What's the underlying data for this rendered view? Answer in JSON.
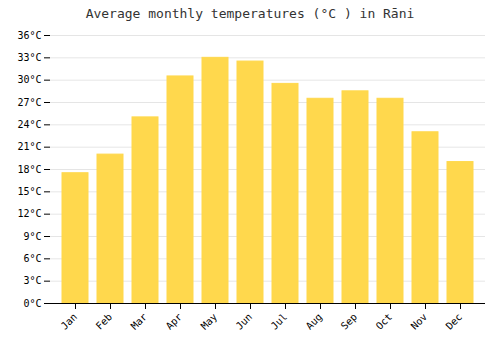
{
  "chart_data": {
    "type": "bar",
    "title": "Average monthly temperatures (°C ) in Rāni",
    "categories": [
      "Jan",
      "Feb",
      "Mar",
      "Apr",
      "May",
      "Jun",
      "Jul",
      "Aug",
      "Sep",
      "Oct",
      "Nov",
      "Dec"
    ],
    "values": [
      17.5,
      20.0,
      25.0,
      30.5,
      33.0,
      32.5,
      29.5,
      27.5,
      28.5,
      27.5,
      23.0,
      19.0
    ],
    "color": "#FFD84D",
    "ylim": [
      0,
      36
    ],
    "yticks": [
      {
        "value": 0,
        "label": "0°C"
      },
      {
        "value": 3,
        "label": "3°C"
      },
      {
        "value": 6,
        "label": "6°C"
      },
      {
        "value": 9,
        "label": "9°C"
      },
      {
        "value": 12,
        "label": "12°C"
      },
      {
        "value": 15,
        "label": "15°C"
      },
      {
        "value": 18,
        "label": "18°C"
      },
      {
        "value": 21,
        "label": "21°C"
      },
      {
        "value": 24,
        "label": "24°C"
      },
      {
        "value": 27,
        "label": "27°C"
      },
      {
        "value": 30,
        "label": "30°C"
      },
      {
        "value": 33,
        "label": "33°C"
      },
      {
        "value": 36,
        "label": "36°C"
      }
    ],
    "grid": true
  }
}
